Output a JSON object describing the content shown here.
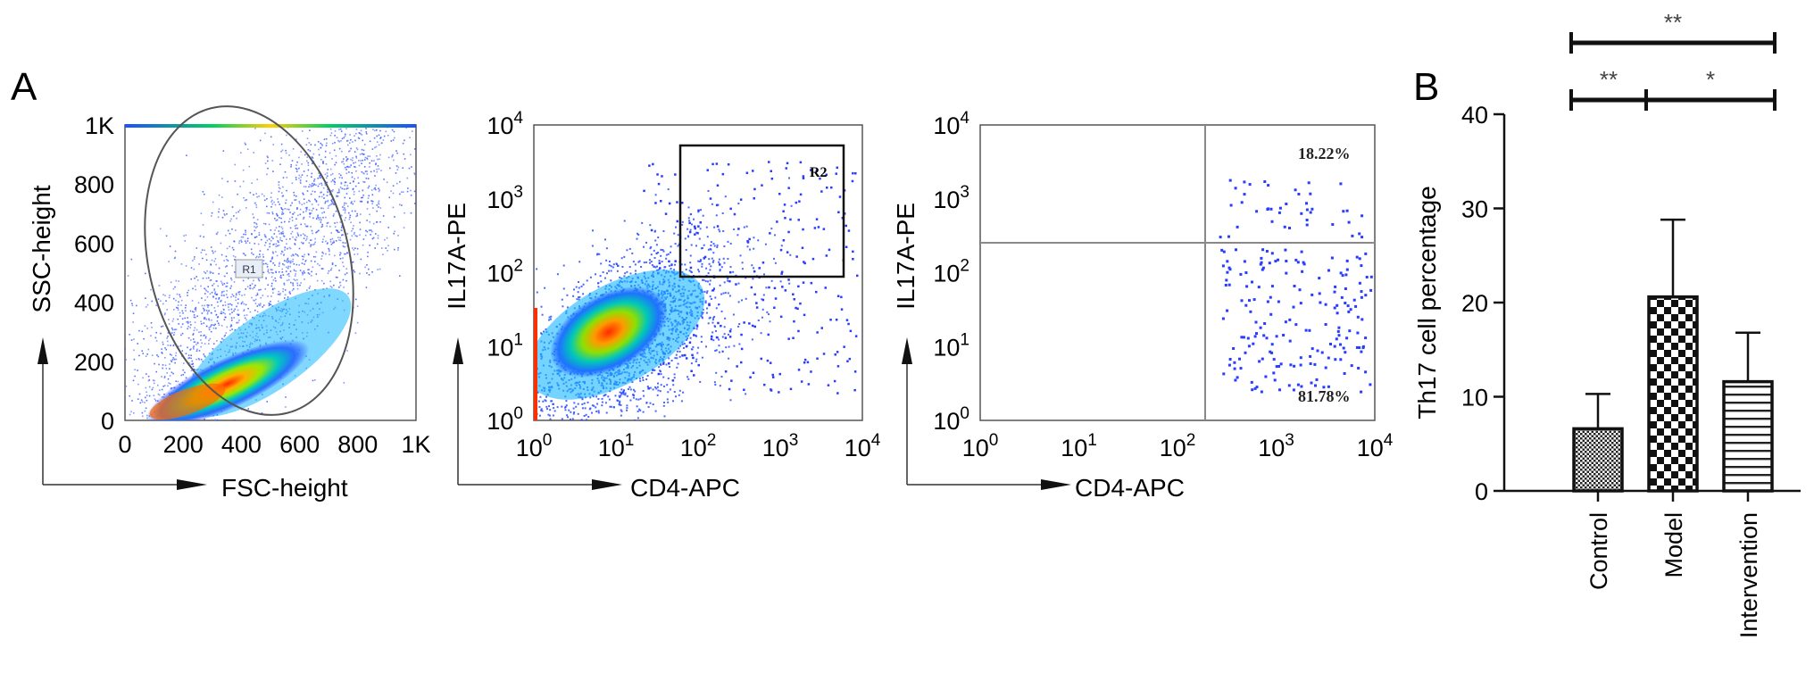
{
  "panel_a_label": "A",
  "panel_b_label": "B",
  "chart_data": [
    {
      "type": "scatter",
      "panel": "A",
      "subtype": "flow-cytometry density plot",
      "xlabel": "FSC-height",
      "ylabel": "SSC-height",
      "xticks": [
        "0",
        "200",
        "400",
        "600",
        "800",
        "1K"
      ],
      "yticks": [
        "0",
        "200",
        "400",
        "600",
        "800",
        "1K"
      ],
      "xlim": [
        0,
        1000
      ],
      "ylim": [
        0,
        1000
      ],
      "gate": {
        "name": "R1",
        "shape": "ellipse"
      }
    },
    {
      "type": "scatter",
      "panel": "A",
      "subtype": "flow-cytometry density plot",
      "xlabel": "CD4-APC",
      "ylabel": "IL17A-PE",
      "scale": "log",
      "xticks": [
        "10^0",
        "10^1",
        "10^2",
        "10^3",
        "10^4"
      ],
      "yticks": [
        "10^0",
        "10^1",
        "10^2",
        "10^3",
        "10^4"
      ],
      "xlim": [
        1,
        10000
      ],
      "ylim": [
        1,
        10000
      ],
      "gate": {
        "name": "R2",
        "shape": "rectangle",
        "x_range": [
          60,
          6000
        ],
        "y_range": [
          90,
          7000
        ]
      }
    },
    {
      "type": "scatter",
      "panel": "A",
      "subtype": "flow-cytometry quadrant plot",
      "xlabel": "CD4-APC",
      "ylabel": "IL17A-PE",
      "scale": "log",
      "xticks": [
        "10^0",
        "10^1",
        "10^2",
        "10^3",
        "10^4"
      ],
      "yticks": [
        "10^0",
        "10^1",
        "10^2",
        "10^3",
        "10^4"
      ],
      "xlim": [
        1,
        10000
      ],
      "ylim": [
        1,
        10000
      ],
      "quadrant_x": 150,
      "quadrant_y": 250,
      "annotations": [
        "18.22%",
        "81.78%"
      ]
    },
    {
      "type": "bar",
      "panel": "B",
      "categories": [
        "Control",
        "Model",
        "Intervention"
      ],
      "values": [
        6.6,
        20.6,
        11.6
      ],
      "errors": [
        3.7,
        8.2,
        5.2
      ],
      "patterns": [
        "dense-check",
        "checkerboard",
        "horizontal-lines"
      ],
      "ylabel": "Th17 cell percentage",
      "yticks": [
        "0",
        "10",
        "20",
        "30",
        "40"
      ],
      "ylim": [
        0,
        40
      ],
      "significance": [
        {
          "from": "Control",
          "to": "Intervention",
          "label": "**"
        },
        {
          "from": "Control",
          "to": "Model",
          "label": "**"
        },
        {
          "from": "Model",
          "to": "Intervention",
          "label": "*"
        }
      ]
    }
  ]
}
